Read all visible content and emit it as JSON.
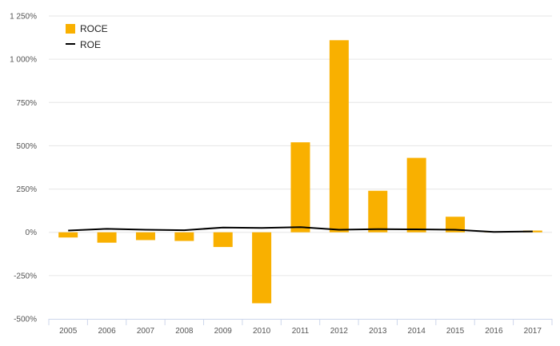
{
  "chart_data": {
    "type": "bar",
    "categories": [
      "2005",
      "2006",
      "2007",
      "2008",
      "2009",
      "2010",
      "2011",
      "2012",
      "2013",
      "2014",
      "2015",
      "2016",
      "2017"
    ],
    "series": [
      {
        "name": "ROCE",
        "kind": "bar",
        "color": "#f9b000",
        "values": [
          -30,
          -60,
          -45,
          -50,
          -85,
          -410,
          520,
          1110,
          240,
          430,
          90,
          5,
          10
        ]
      },
      {
        "name": "ROE",
        "kind": "line",
        "color": "#000000",
        "values": [
          10,
          20,
          15,
          12,
          28,
          25,
          30,
          15,
          18,
          17,
          15,
          2,
          5
        ]
      }
    ],
    "ylim": [
      -500,
      1250
    ],
    "yticks": [
      -500,
      -250,
      0,
      250,
      500,
      750,
      1000,
      1250
    ],
    "ytick_labels": [
      "-500%",
      "-250%",
      "0%",
      "250%",
      "500%",
      "750%",
      "1 000%",
      "1 250%"
    ],
    "grid": true,
    "legend": "top-left"
  }
}
